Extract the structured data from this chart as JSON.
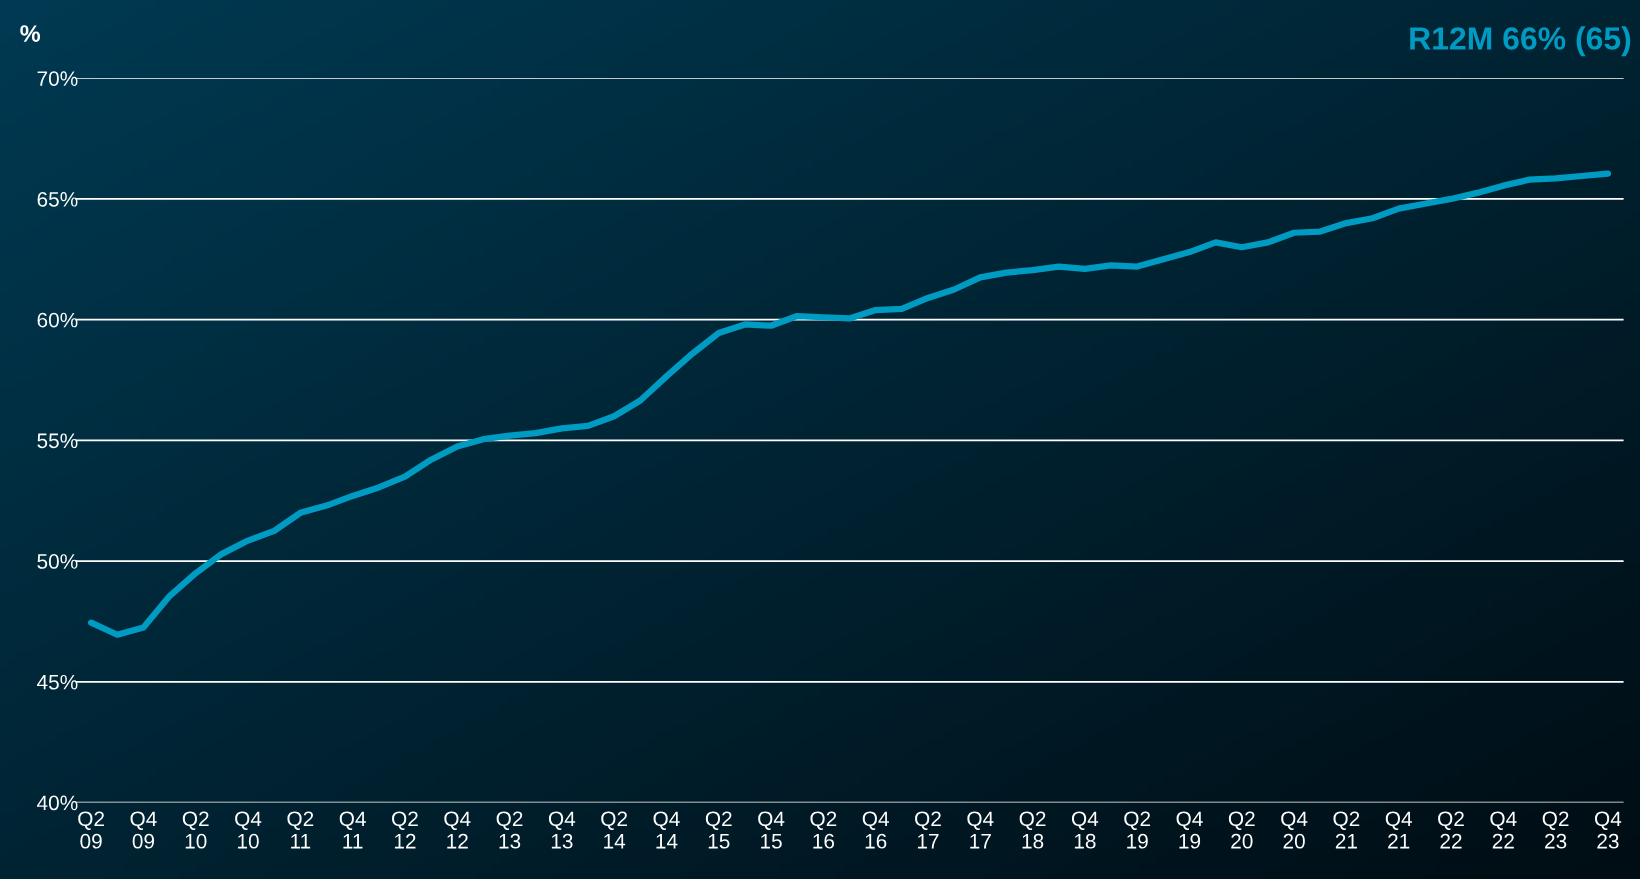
{
  "chart_data": {
    "type": "line",
    "ylabel": "%",
    "categories": [
      "Q2\n09",
      null,
      "Q4\n09",
      null,
      "Q2\n10",
      null,
      "Q4\n10",
      null,
      "Q2\n11",
      null,
      "Q4\n11",
      null,
      "Q2\n12",
      null,
      "Q4\n12",
      null,
      "Q2\n13",
      null,
      "Q4\n13",
      null,
      "Q2\n14",
      null,
      "Q4\n14",
      null,
      "Q2\n15",
      null,
      "Q4\n15",
      null,
      "Q2\n16",
      null,
      "Q4\n16",
      null,
      "Q2\n17",
      null,
      "Q4\n17",
      null,
      "Q2\n18",
      null,
      "Q4\n18",
      null,
      "Q2\n19",
      null,
      "Q4\n19",
      null,
      "Q2\n20",
      null,
      "Q4\n20",
      null,
      "Q2\n21",
      null,
      "Q4\n21",
      null,
      "Q2\n22",
      null,
      "Q4\n22",
      null,
      "Q2\n23",
      null,
      "Q4\n23"
    ],
    "series": [
      {
        "color": "#009bc2",
        "values": [
          47.45,
          46.95,
          47.25,
          48.55,
          49.5,
          50.3,
          50.85,
          51.25,
          52.0,
          52.3,
          52.7,
          53.05,
          53.5,
          54.2,
          54.75,
          55.05,
          55.2,
          55.3,
          55.5,
          55.6,
          56.0,
          56.65,
          57.65,
          58.6,
          59.45,
          59.8,
          59.75,
          60.15,
          60.1,
          60.05,
          60.4,
          60.45,
          60.9,
          61.25,
          61.75,
          61.95,
          62.05,
          62.2,
          62.1,
          62.25,
          62.2,
          62.5,
          62.8,
          63.2,
          63.0,
          63.2,
          63.6,
          63.65,
          64.0,
          64.2,
          64.6,
          64.8,
          65.0,
          65.25,
          65.55,
          65.8,
          65.85,
          65.95,
          66.05
        ]
      }
    ],
    "ylim": [
      40,
      70
    ],
    "yticks": [
      {
        "value": 40,
        "label": "40%"
      },
      {
        "value": 45,
        "label": "45%"
      },
      {
        "value": 50,
        "label": "50%"
      },
      {
        "value": 55,
        "label": "55%"
      },
      {
        "value": 60,
        "label": "60%"
      },
      {
        "value": 65,
        "label": "65%"
      },
      {
        "value": 70,
        "label": "70%"
      }
    ],
    "grid": "y",
    "marker": "none",
    "line_style": "solid",
    "annotations": [
      "R12M 66% (65)"
    ]
  }
}
